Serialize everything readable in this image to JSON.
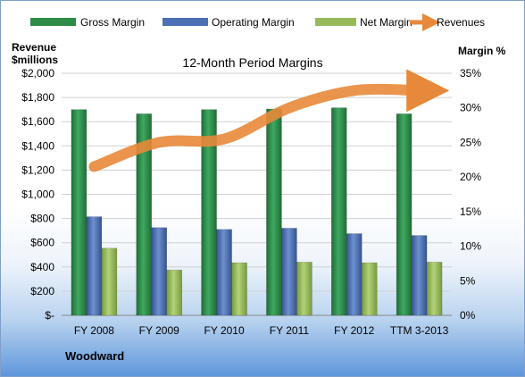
{
  "chart_data": {
    "type": "bar",
    "title": "12-Month Period Margins",
    "company": "Woodward",
    "y_left_label": [
      "Revenue",
      "$millions"
    ],
    "y_right_label": "Margin %",
    "categories": [
      "FY 2008",
      "FY 2009",
      "FY 2010",
      "FY 2011",
      "FY 2012",
      "TTM 3-2013"
    ],
    "y_left_ticks": [
      "$-",
      "$200",
      "$400",
      "$600",
      "$800",
      "$1,000",
      "$1,200",
      "$1,400",
      "$1,600",
      "$1,800",
      "$2,000"
    ],
    "y_right_ticks": [
      "0%",
      "5%",
      "10%",
      "15%",
      "20%",
      "25%",
      "30%",
      "35%"
    ],
    "ylim_left": [
      0,
      2000
    ],
    "ylim_right": [
      0,
      35
    ],
    "grid": true,
    "legend_position": "top",
    "series": [
      {
        "name": "Gross Margin",
        "axis": "left",
        "color": "#2e8b4a",
        "values": [
          1700,
          1665,
          1700,
          1705,
          1715,
          1665
        ]
      },
      {
        "name": "Operating Margin",
        "axis": "left",
        "color": "#4a6fb5",
        "values": [
          815,
          725,
          710,
          720,
          675,
          660
        ]
      },
      {
        "name": "Net Margin",
        "axis": "left",
        "color": "#97b95a",
        "values": [
          555,
          375,
          435,
          440,
          435,
          440
        ]
      },
      {
        "name": "Revenues",
        "axis": "right",
        "color": "#e8883a",
        "values": [
          21.5,
          25,
          25.5,
          30,
          32.5,
          32.5
        ]
      }
    ]
  }
}
